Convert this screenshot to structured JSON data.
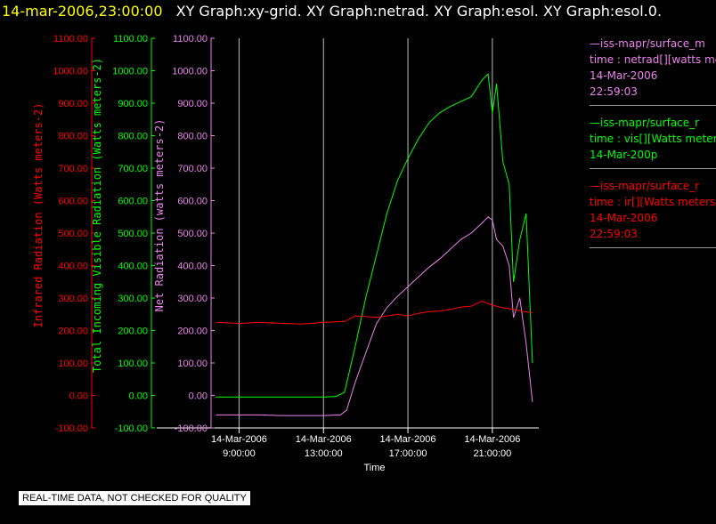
{
  "header": {
    "timestamp": "14-mar-2006,23:00:00",
    "titles": "XY Graph:xy-grid.  XY Graph:netrad.  XY Graph:esol.  XY Graph:esol.0."
  },
  "colors": {
    "ir": "#ff0000",
    "vis": "#00ff00",
    "netrad": "#ee82ee",
    "grid": "#bbbbbb",
    "axis": "#ffffff"
  },
  "chart_data": {
    "type": "line",
    "xlabel": "Time",
    "xlim": [
      7.8,
      23.2
    ],
    "x_ticks": [
      {
        "value": 9,
        "label1": "14-Mar-2006",
        "label2": "9:00:00"
      },
      {
        "value": 13,
        "label1": "14-Mar-2006",
        "label2": "13:00:00"
      },
      {
        "value": 17,
        "label1": "14-Mar-2006",
        "label2": "17:00:00"
      },
      {
        "value": 21,
        "label1": "14-Mar-2006",
        "label2": "21:00:00"
      }
    ],
    "grid": true,
    "y_axes": [
      {
        "id": "ir",
        "label": "Infrared Radiation (Watts meters-2)",
        "color": "#ff0000",
        "ylim": [
          -100,
          1100
        ],
        "ticks": [
          "-100.00",
          "0.00",
          "100.00",
          "200.00",
          "300.00",
          "400.00",
          "500.00",
          "600.00",
          "700.00",
          "800.00",
          "900.00",
          "1000.00",
          "1100.00"
        ]
      },
      {
        "id": "vis",
        "label": "Total Incoming Visible Radiation (Watts meters-2)",
        "color": "#00ff00",
        "ylim": [
          -100,
          1100
        ],
        "ticks": [
          "-100.00",
          "0.00",
          "100.00",
          "200.00",
          "300.00",
          "400.00",
          "500.00",
          "600.00",
          "700.00",
          "800.00",
          "900.00",
          "1000.00",
          "1100.00"
        ]
      },
      {
        "id": "netrad",
        "label": "Net Radiation (watts meters-2)",
        "color": "#ee82ee",
        "ylim": [
          -100,
          1100
        ],
        "ticks": [
          "-100.00",
          "0.00",
          "100.00",
          "200.00",
          "300.00",
          "400.00",
          "500.00",
          "600.00",
          "700.00",
          "800.00",
          "900.00",
          "1000.00",
          "1100.00"
        ]
      }
    ],
    "series": [
      {
        "name": "vis",
        "color": "#00ff00",
        "x": [
          7.9,
          9,
          10,
          11,
          12,
          13,
          13.6,
          14.0,
          14.5,
          15,
          15.5,
          16,
          16.5,
          17,
          17.5,
          18,
          18.5,
          19,
          19.5,
          20,
          20.5,
          20.8,
          21.0,
          21.2,
          21.5,
          21.8,
          22.0,
          22.3,
          22.6,
          22.9
        ],
        "y": [
          -5,
          -5,
          -5,
          -5,
          -5,
          -5,
          -3,
          10,
          150,
          300,
          430,
          560,
          660,
          730,
          790,
          840,
          870,
          890,
          905,
          920,
          970,
          990,
          870,
          960,
          720,
          650,
          350,
          480,
          560,
          100
        ]
      },
      {
        "name": "netrad",
        "color": "#ee82ee",
        "x": [
          7.9,
          9,
          10,
          11,
          12,
          13,
          13.8,
          14.1,
          14.5,
          15,
          15.5,
          16,
          16.5,
          17,
          17.5,
          18,
          18.5,
          19,
          19.5,
          20,
          20.5,
          20.8,
          21.0,
          21.2,
          21.5,
          21.8,
          22.0,
          22.3,
          22.6,
          22.9
        ],
        "y": [
          -60,
          -60,
          -60,
          -62,
          -62,
          -62,
          -60,
          -45,
          40,
          130,
          220,
          270,
          305,
          335,
          365,
          395,
          420,
          450,
          480,
          500,
          530,
          550,
          540,
          480,
          460,
          400,
          240,
          300,
          160,
          -20
        ]
      },
      {
        "name": "ir",
        "color": "#ff0000",
        "x": [
          7.9,
          9,
          10,
          11,
          12,
          13,
          14,
          14.5,
          15,
          15.5,
          16,
          16.5,
          17,
          17.5,
          18,
          18.5,
          19,
          19.5,
          20,
          20.5,
          21,
          21.5,
          22,
          22.5,
          22.9
        ],
        "y": [
          225,
          222,
          225,
          222,
          220,
          225,
          228,
          245,
          243,
          240,
          245,
          250,
          245,
          253,
          258,
          260,
          265,
          272,
          275,
          290,
          278,
          270,
          265,
          258,
          255
        ]
      }
    ]
  },
  "legend": [
    {
      "lines": [
        "—iss-mapr/surface_m",
        "time : netrad[][watts me",
        "14-Mar-2006",
        "22:59:03"
      ],
      "color": "#ee82ee"
    },
    {
      "lines": [
        "—iss-mapr/surface_r",
        "time : vis[][Watts meters",
        "14-Mar-200p"
      ],
      "color": "#00ff00"
    },
    {
      "lines": [
        "—iss-mapr/surface_r",
        "time : ir[][Watts meters",
        "14-Mar-2006",
        "22:59:03"
      ],
      "color": "#ff0000"
    }
  ],
  "notice": "REAL-TIME DATA, NOT CHECKED FOR QUALITY"
}
